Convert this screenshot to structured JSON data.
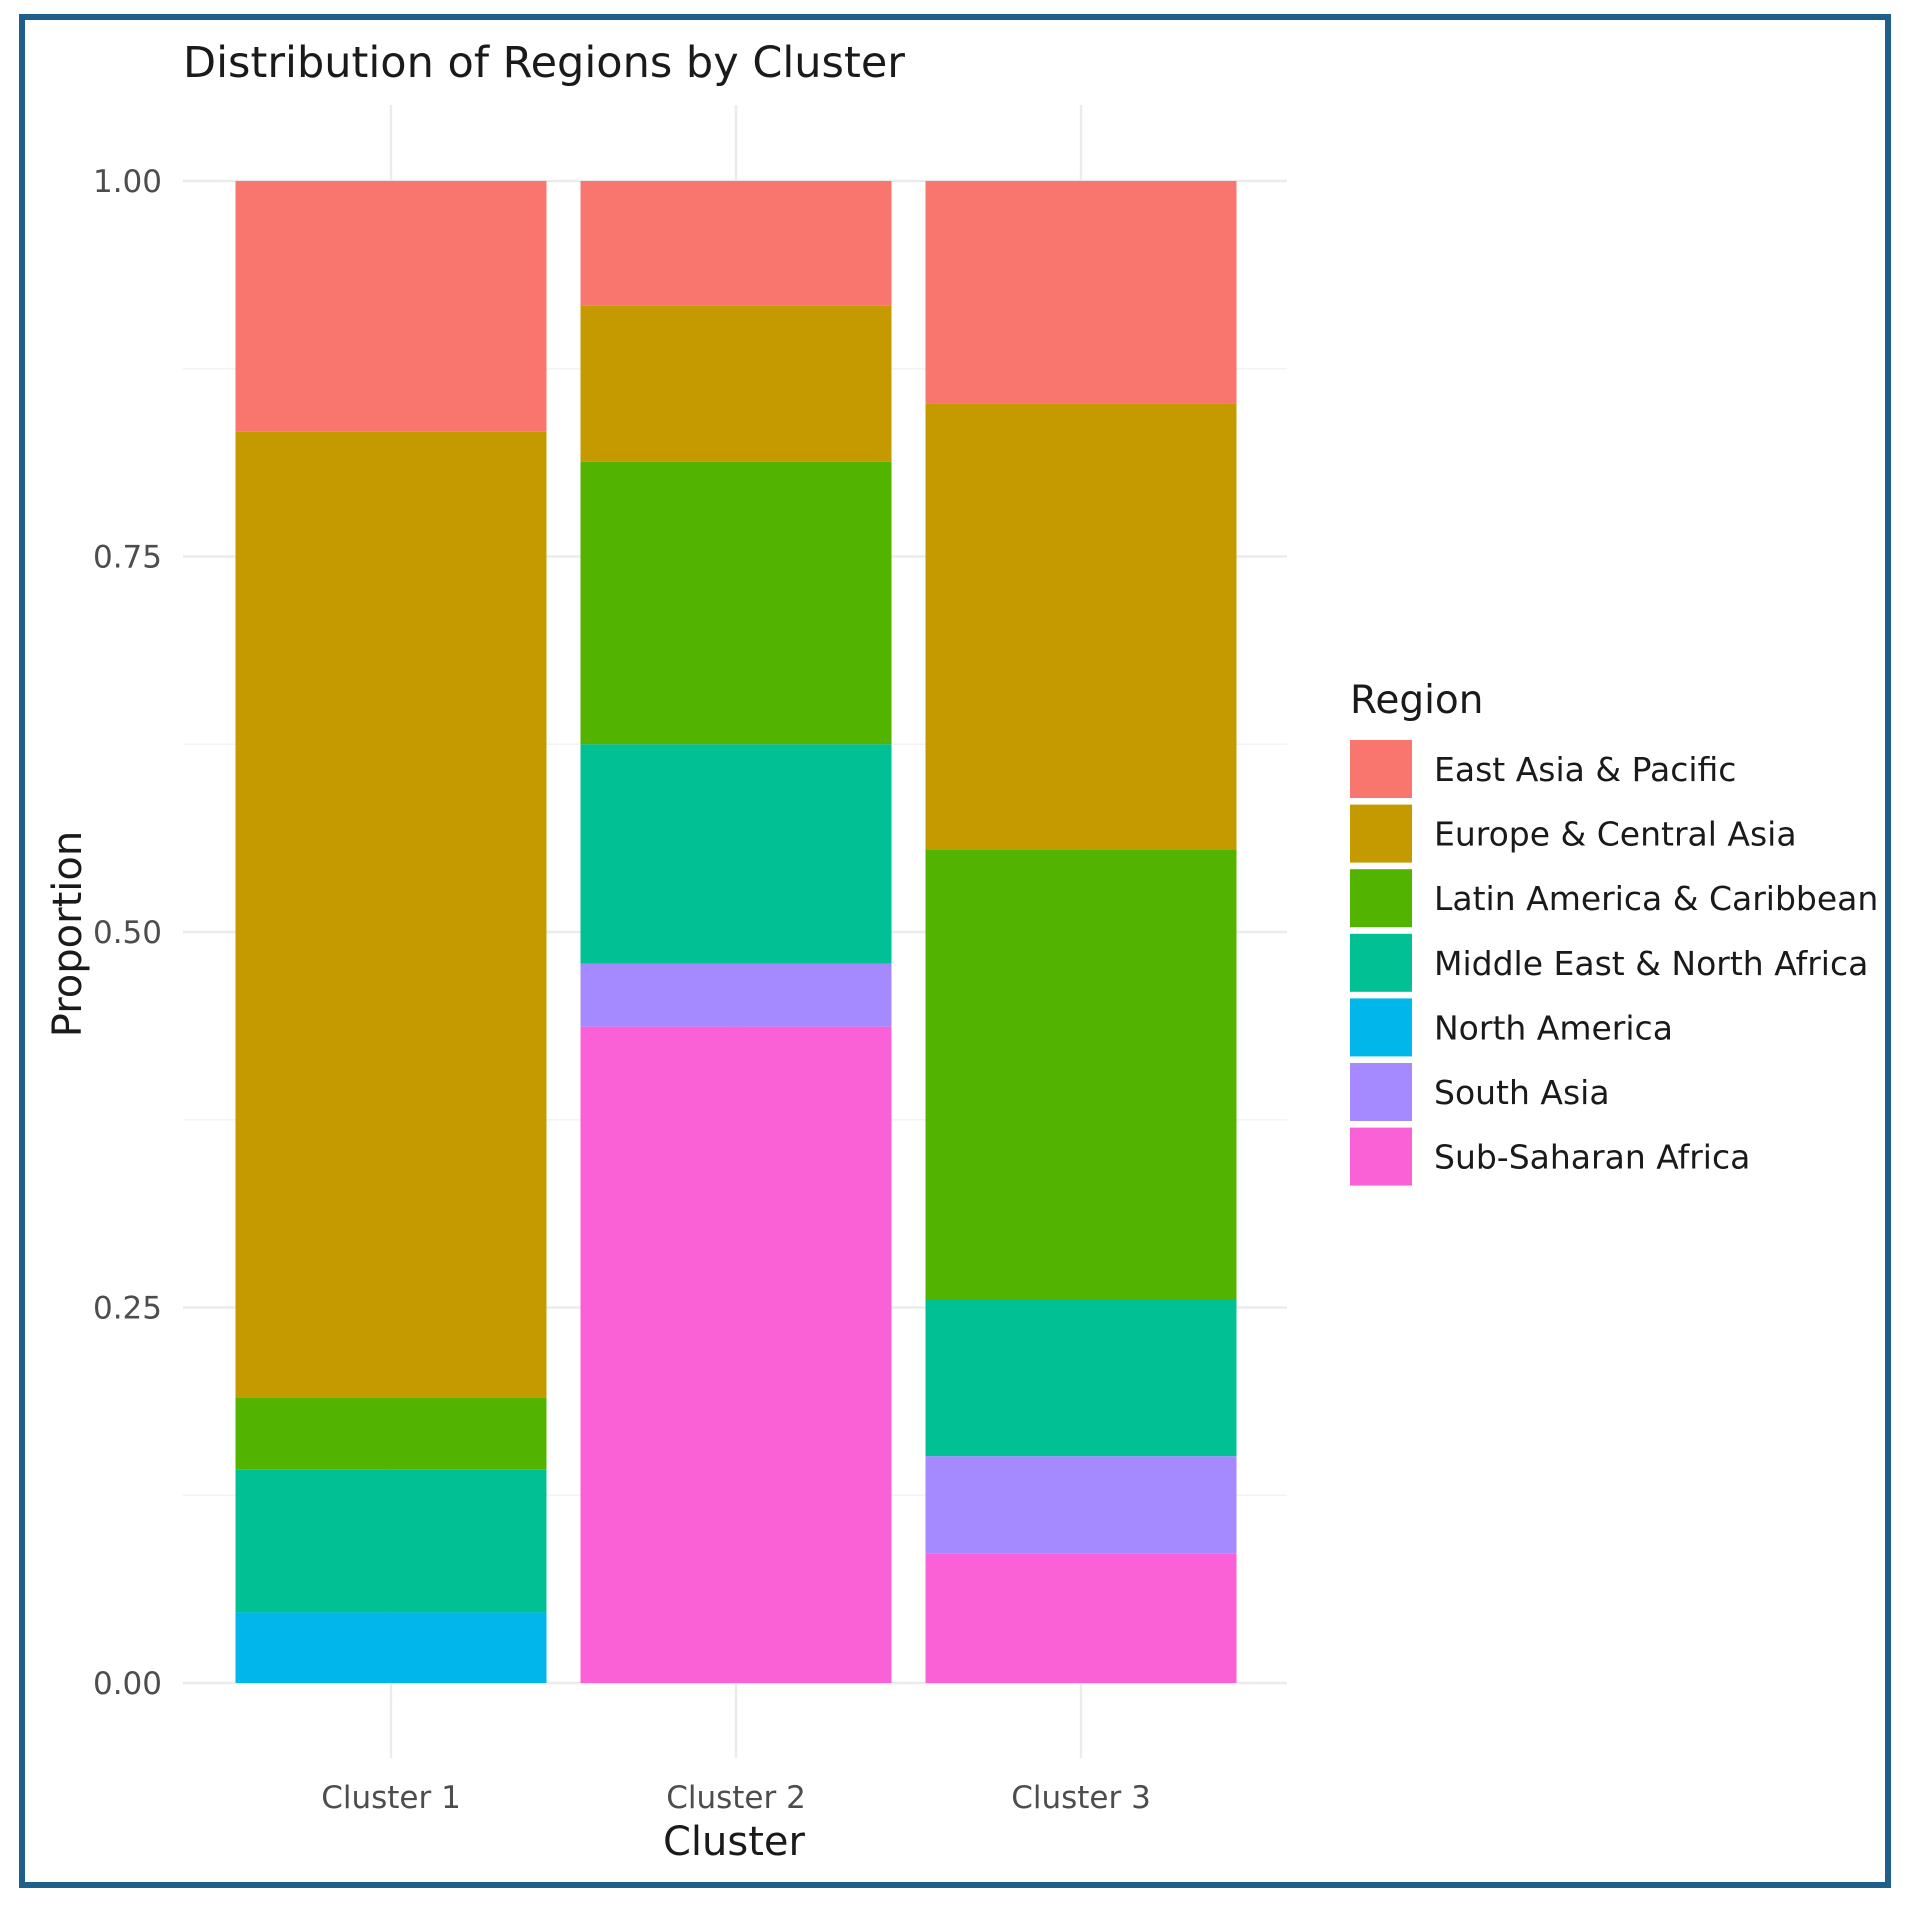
{
  "chart_data": {
    "type": "bar",
    "stacked": true,
    "title": "Distribution of Regions by Cluster",
    "xlabel": "Cluster",
    "ylabel": "Proportion",
    "categories": [
      "Cluster 1",
      "Cluster 2",
      "Cluster 3"
    ],
    "ylim": [
      0,
      1
    ],
    "yticks": [
      "0.00",
      "0.25",
      "0.50",
      "0.75",
      "1.00"
    ],
    "grid": true,
    "legend": {
      "title": "Region",
      "position": "right"
    },
    "series": [
      {
        "name": "East Asia & Pacific",
        "color": "#F8766D",
        "values": [
          0.167,
          0.083,
          0.148
        ]
      },
      {
        "name": "Europe & Central Asia",
        "color": "#C49A00",
        "values": [
          0.643,
          0.104,
          0.297
        ]
      },
      {
        "name": "Latin America & Caribbean",
        "color": "#53B400",
        "values": [
          0.048,
          0.188,
          0.3
        ]
      },
      {
        "name": "Middle East & North Africa",
        "color": "#00C094",
        "values": [
          0.095,
          0.146,
          0.104
        ]
      },
      {
        "name": "North America",
        "color": "#00B6EB",
        "values": [
          0.047,
          0.0,
          0.0
        ]
      },
      {
        "name": "South Asia",
        "color": "#A58AFF",
        "values": [
          0.0,
          0.042,
          0.065
        ]
      },
      {
        "name": "Sub-Saharan Africa",
        "color": "#FB61D7",
        "values": [
          0.0,
          0.437,
          0.086
        ]
      }
    ]
  }
}
